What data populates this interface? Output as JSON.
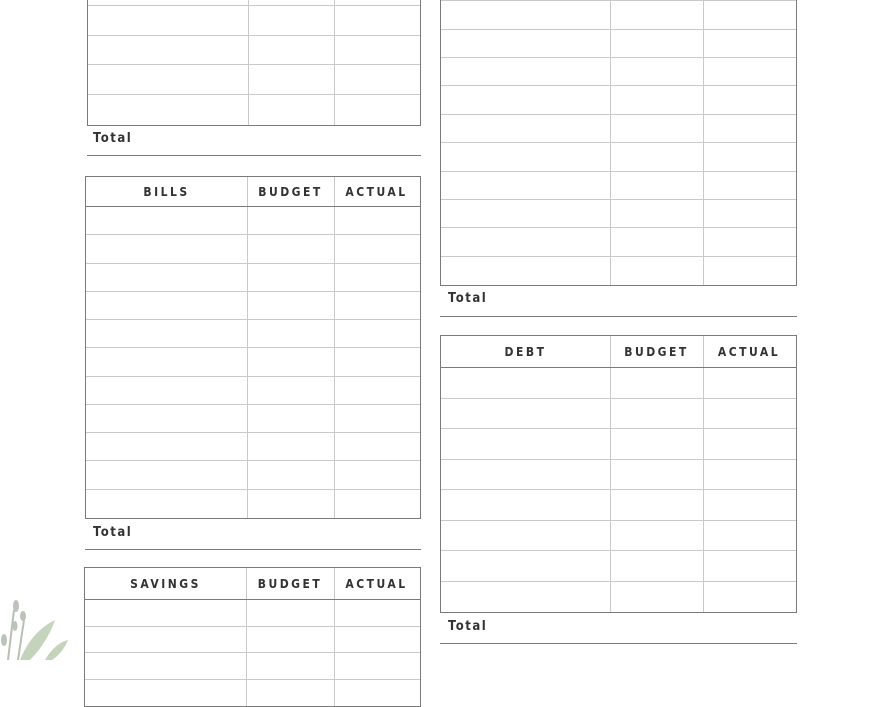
{
  "sections": {
    "top_left": {
      "total_label": "Total"
    },
    "bills": {
      "title": "BILLS",
      "budget": "BUDGET",
      "actual": "ACTUAL",
      "total_label": "Total"
    },
    "savings": {
      "title": "SAVINGS",
      "budget": "BUDGET",
      "actual": "ACTUAL"
    },
    "top_right": {
      "total_label": "Total"
    },
    "debt": {
      "title": "DEBT",
      "budget": "BUDGET",
      "actual": "ACTUAL",
      "total_label": "Total"
    }
  },
  "colors": {
    "border": "#7a7a7a",
    "grid": "#c9c9c9",
    "text": "#333333",
    "leaf": "#a9bfa0"
  }
}
